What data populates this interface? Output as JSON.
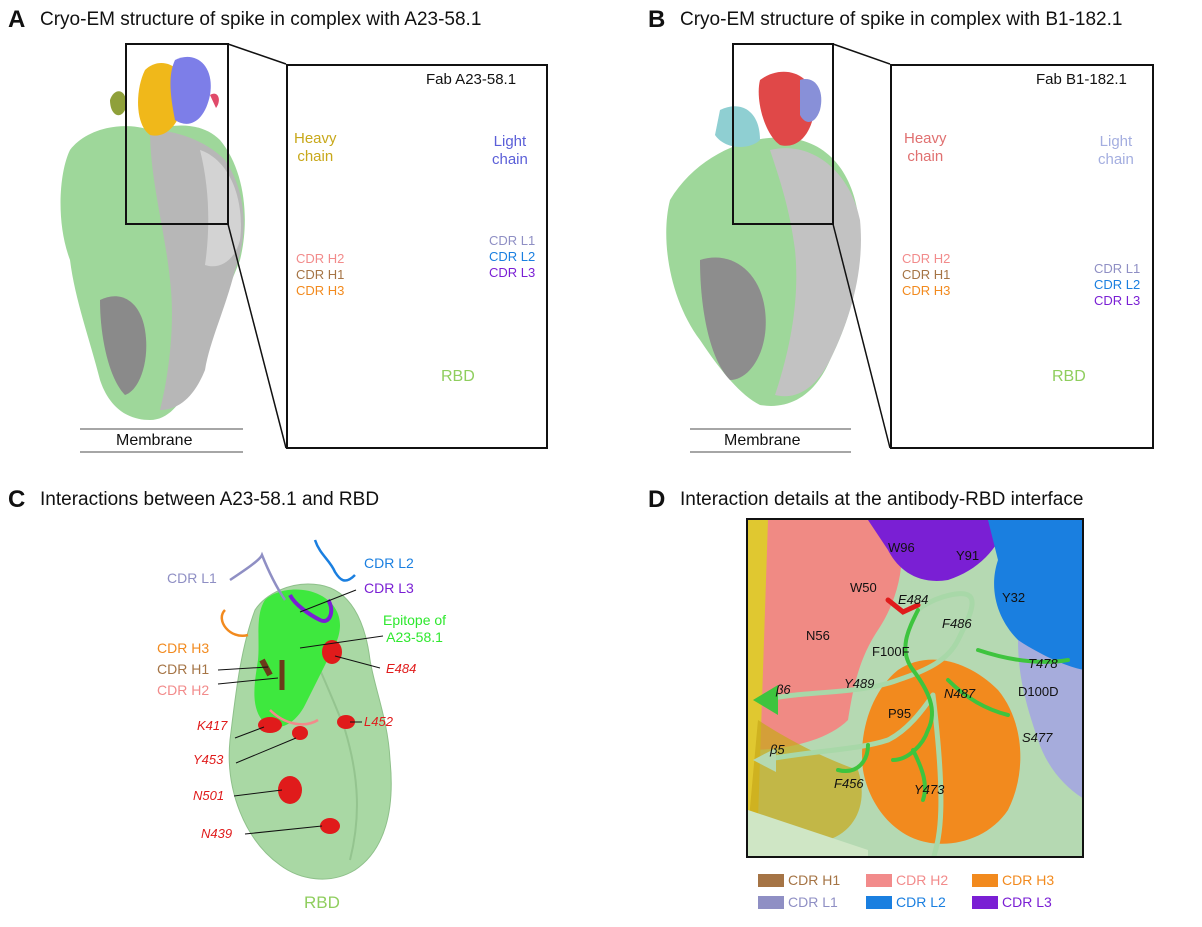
{
  "panels": {
    "A": {
      "letter": "A",
      "title": "Cryo-EM structure of spike in complex with A23-58.1",
      "fab": "Fab A23-58.1",
      "heavy": [
        "Heavy",
        "chain"
      ],
      "light": [
        "Light",
        "chain"
      ],
      "rbd": "RBD",
      "membrane": "Membrane",
      "cdr_left": [
        "CDR H2",
        "CDR H1",
        "CDR H3"
      ],
      "cdr_right": [
        "CDR L1",
        "CDR L2",
        "CDR L3"
      ]
    },
    "B": {
      "letter": "B",
      "title": "Cryo-EM structure of spike in complex with B1-182.1",
      "fab": "Fab B1-182.1",
      "heavy": [
        "Heavy",
        "chain"
      ],
      "light": [
        "Light",
        "chain"
      ],
      "rbd": "RBD",
      "membrane": "Membrane",
      "cdr_left": [
        "CDR H2",
        "CDR H1",
        "CDR H3"
      ],
      "cdr_right": [
        "CDR L1",
        "CDR L2",
        "CDR L3"
      ]
    },
    "C": {
      "letter": "C",
      "title": "Interactions between A23-58.1 and RBD",
      "cdr_l1": "CDR L1",
      "cdr_l2": "CDR L2",
      "cdr_l3": "CDR L3",
      "cdr_h3": "CDR H3",
      "cdr_h1": "CDR H1",
      "cdr_h2": "CDR H2",
      "epitope": [
        "Epitope of",
        "A23-58.1"
      ],
      "rbd": "RBD",
      "residues": [
        "E484",
        "K417",
        "L452",
        "Y453",
        "N501",
        "N439"
      ]
    },
    "D": {
      "letter": "D",
      "title": "Interaction details at the antibody-RBD interface",
      "residues_plain": [
        "W96",
        "Y91",
        "W50",
        "Y32",
        "N56",
        "F100F",
        "D100D",
        "P95"
      ],
      "residues_ital": [
        "E484",
        "F486",
        "T478",
        "Y489",
        "N487",
        "S477",
        "F456",
        "Y473",
        "β6",
        "β5"
      ],
      "legend": [
        {
          "label": "CDR H1",
          "color": "#a57445"
        },
        {
          "label": "CDR H2",
          "color": "#f28b8b"
        },
        {
          "label": "CDR H3",
          "color": "#f28a1e"
        },
        {
          "label": "CDR L1",
          "color": "#8f8fc4"
        },
        {
          "label": "CDR L2",
          "color": "#1a7fe0"
        },
        {
          "label": "CDR L3",
          "color": "#7a1fd4"
        }
      ]
    }
  },
  "colors": {
    "heavy": "#c8a81a",
    "light": "#5b5fd8",
    "rbd": "#8fce8f",
    "heavyB": "#e07070",
    "lightB": "#a4aee0",
    "h1": "#a57445",
    "h2": "#f28b8b",
    "h3": "#f28a1e",
    "l1": "#8f8fc4",
    "l2": "#1a7fe0",
    "l3": "#7a1fd4",
    "epitope": "#2ee82e",
    "resid": "#e01b1b"
  }
}
